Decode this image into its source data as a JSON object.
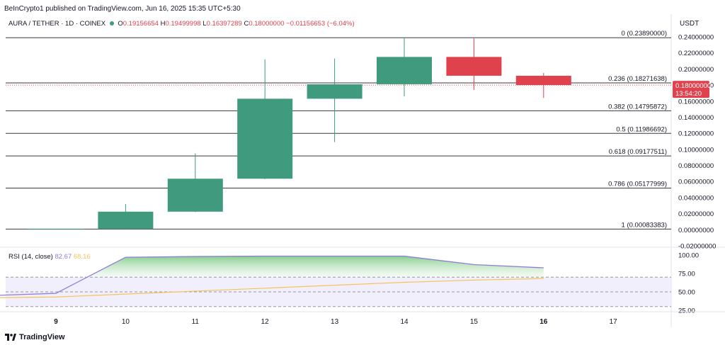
{
  "publisher_line": "BeInCrypto1 published on TradingView.com, Jun 16, 2025 15:35 UTC+5:30",
  "symbol": {
    "name": "AURA / TETHER · 1D · COINEX",
    "o_label": "O",
    "o_value": "0.19156654",
    "h_label": "H",
    "h_value": "0.19499998",
    "l_label": "L",
    "l_value": "0.16397289",
    "c_label": "C",
    "c_value": "0.18000000",
    "change": "−0.01156653 (−6.04%)"
  },
  "currency_label": "USDT",
  "last_price_label": {
    "price": "0.18000000",
    "countdown": "13:54:20"
  },
  "rsi_legend": {
    "name": "RSI (14, close)",
    "rsi_value": "82.67",
    "ma_value": "68.16"
  },
  "branding": "TradingView",
  "colors": {
    "up": "#3f9a7e",
    "down": "#e0424d",
    "fib_line": "#3a3a3a",
    "rsi_line": "#8f7fdb",
    "rsi_ma": "#f6c35a",
    "rsi_band": "#ede8fb",
    "price_line": "#e0424d",
    "text": "#131722"
  },
  "chart_data": [
    {
      "type": "candlestick",
      "x_labels": [
        "9",
        "10",
        "11",
        "12",
        "13",
        "14",
        "15",
        "16",
        "17"
      ],
      "candles": [
        {
          "x": "9",
          "open": 0.0005,
          "high": 0.001,
          "low": 0.0003,
          "close": 0.001
        },
        {
          "x": "10",
          "open": 0.001,
          "high": 0.032,
          "low": 0.001,
          "close": 0.0225
        },
        {
          "x": "11",
          "open": 0.0225,
          "high": 0.095,
          "low": 0.022,
          "close": 0.0635
        },
        {
          "x": "12",
          "open": 0.0635,
          "high": 0.212,
          "low": 0.063,
          "close": 0.163
        },
        {
          "x": "13",
          "open": 0.163,
          "high": 0.213,
          "low": 0.109,
          "close": 0.181
        },
        {
          "x": "14",
          "open": 0.181,
          "high": 0.239,
          "low": 0.166,
          "close": 0.215
        },
        {
          "x": "15",
          "open": 0.215,
          "high": 0.238,
          "low": 0.174,
          "close": 0.1916
        },
        {
          "x": "16",
          "open": 0.19156654,
          "high": 0.19499998,
          "low": 0.16397289,
          "close": 0.18
        }
      ],
      "y_ticks": [
        "0.24000000",
        "0.22000000",
        "0.20000000",
        "0.18000000",
        "0.16000000",
        "0.14000000",
        "0.12000000",
        "0.10000000",
        "0.08000000",
        "0.06000000",
        "0.04000000",
        "0.02000000",
        "0.00000000",
        "-0.02000000"
      ],
      "ylim": [
        -0.02,
        0.24
      ],
      "fib_levels": [
        {
          "label": "0 (0.23890000)",
          "value": 0.2389
        },
        {
          "label": "0.236 (0.18271638)",
          "value": 0.18271638
        },
        {
          "label": "0.382 (0.14795872)",
          "value": 0.14795872
        },
        {
          "label": "0.5 (0.11986692)",
          "value": 0.11986692
        },
        {
          "label": "0.618 (0.09177511)",
          "value": 0.09177511
        },
        {
          "label": "0.786 (0.05177999)",
          "value": 0.05177999
        },
        {
          "label": "1 (0.00083383)",
          "value": 0.00083383
        }
      ],
      "last_price": 0.18
    },
    {
      "type": "line",
      "title": "RSI (14, close)",
      "x": [
        8.05,
        9,
        10,
        11,
        12,
        13,
        14,
        15,
        16
      ],
      "series": [
        {
          "name": "RSI",
          "values": [
            45,
            48,
            97,
            98,
            98.5,
            98.5,
            98.5,
            87,
            82.67
          ]
        },
        {
          "name": "RSI MA",
          "values": [
            42,
            43,
            47,
            51,
            55,
            59,
            63,
            66,
            68.16
          ]
        }
      ],
      "y_ticks": [
        "100.00",
        "75.00",
        "50.00",
        "25.00"
      ],
      "band": [
        30,
        70
      ]
    }
  ]
}
